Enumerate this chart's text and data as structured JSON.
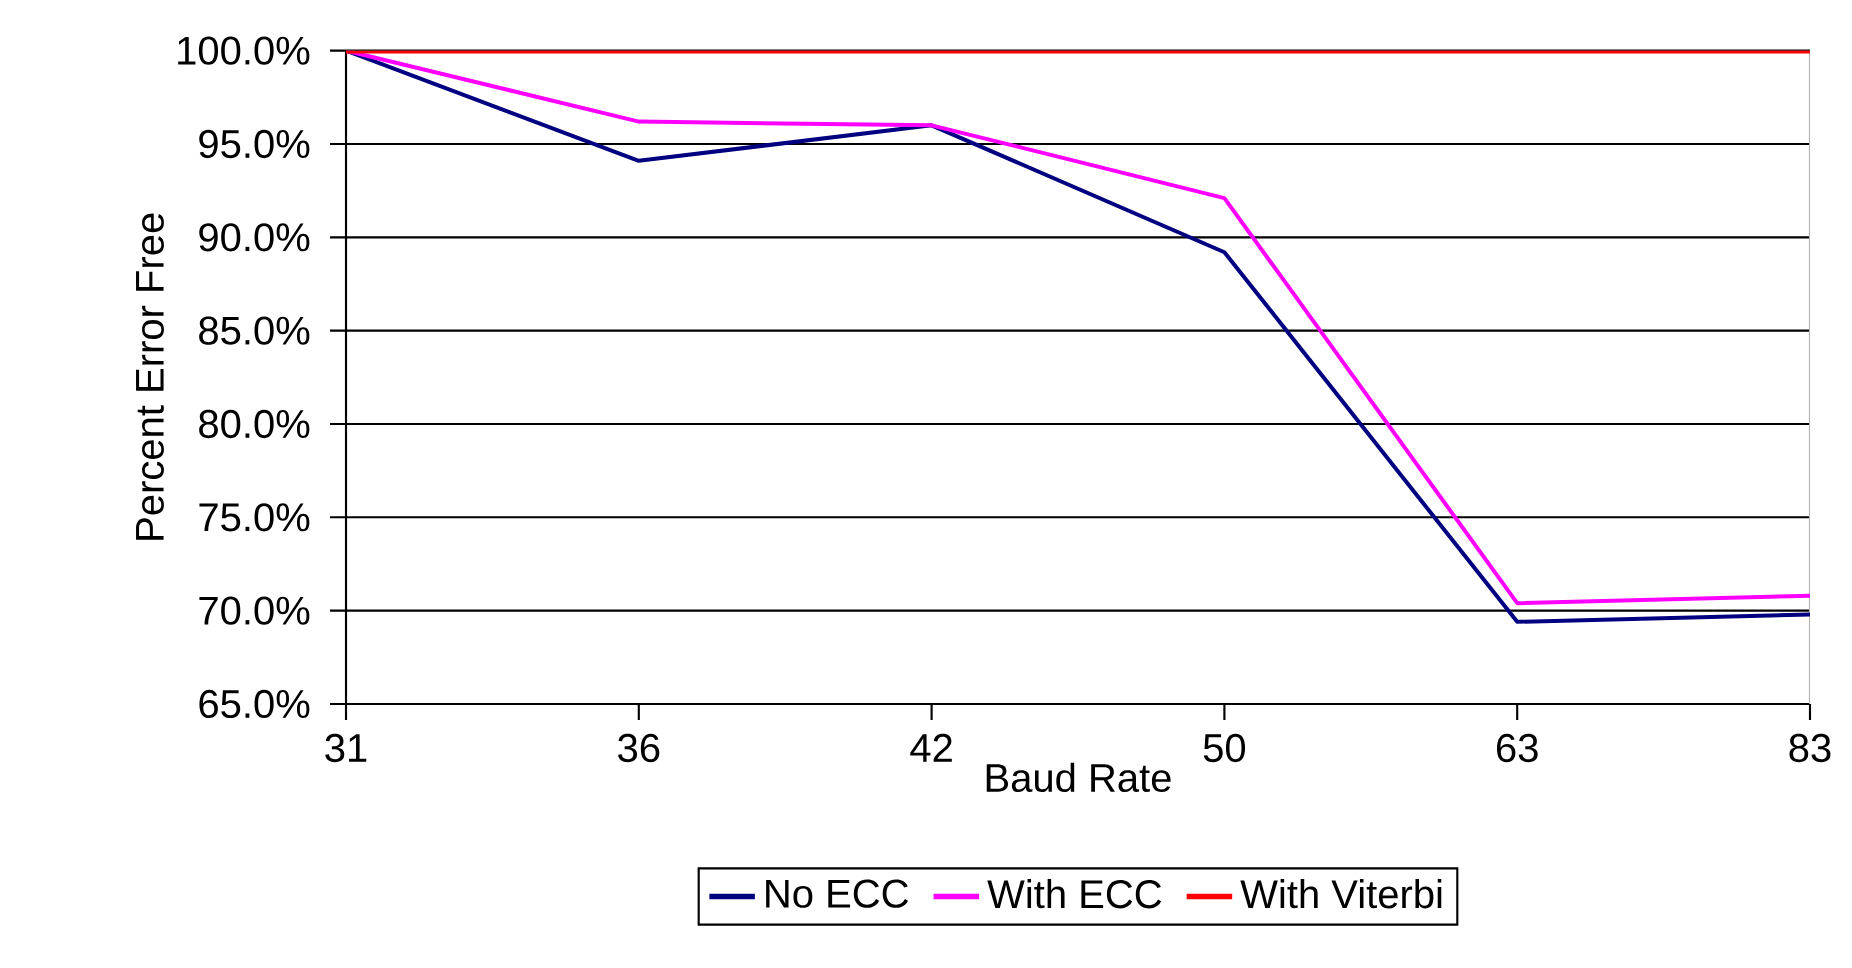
{
  "chart_data": {
    "type": "line",
    "xlabel": "Baud Rate",
    "ylabel": "Percent Error Free",
    "categories": [
      "31",
      "36",
      "42",
      "50",
      "63",
      "83"
    ],
    "ylim": [
      65,
      100
    ],
    "yticks": [
      {
        "value": 65,
        "label": "65.0%"
      },
      {
        "value": 70,
        "label": "70.0%"
      },
      {
        "value": 75,
        "label": "75.0%"
      },
      {
        "value": 80,
        "label": "80.0%"
      },
      {
        "value": 85,
        "label": "85.0%"
      },
      {
        "value": 90,
        "label": "90.0%"
      },
      {
        "value": 95,
        "label": "95.0%"
      },
      {
        "value": 100,
        "label": "100.0%"
      }
    ],
    "grid": "y",
    "legend": "bottom",
    "marker": "none",
    "line_style": "solid",
    "series": [
      {
        "name": "No ECC",
        "color": "#000080",
        "values": [
          100,
          94.1,
          96.0,
          89.2,
          69.4,
          69.8
        ]
      },
      {
        "name": "With ECC",
        "color": "#ff00ff",
        "values": [
          100,
          96.2,
          96.0,
          92.1,
          70.4,
          70.8
        ]
      },
      {
        "name": "With Viterbi",
        "color": "#ff0000",
        "values": [
          100,
          100,
          100,
          100,
          100,
          100
        ]
      }
    ]
  }
}
